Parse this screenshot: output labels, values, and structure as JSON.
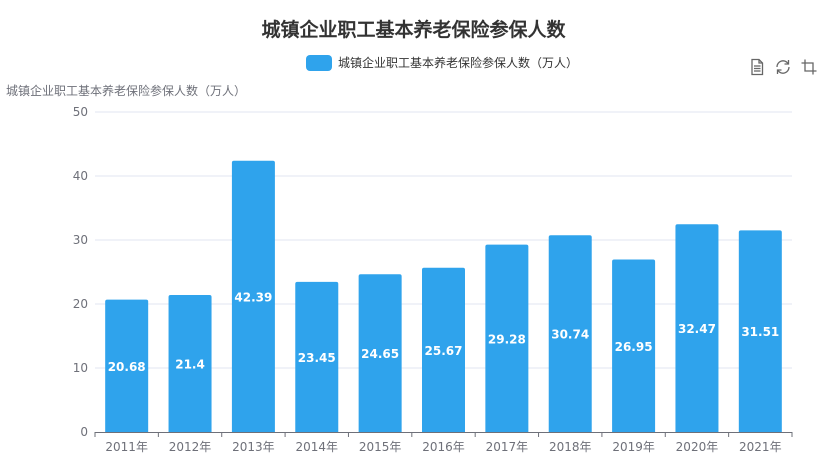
{
  "chart_data": {
    "type": "bar",
    "title": "城镇企业职工基本养老保险参保人数",
    "xlabel": "",
    "ylabel": "城镇企业职工基本养老保险参保人数（万人）",
    "categories": [
      "2011年",
      "2012年",
      "2013年",
      "2014年",
      "2015年",
      "2016年",
      "2017年",
      "2018年",
      "2019年",
      "2020年",
      "2021年"
    ],
    "series": [
      {
        "name": "城镇企业职工基本养老保险参保人数（万人）",
        "values": [
          20.68,
          21.4,
          42.39,
          23.45,
          24.65,
          25.67,
          29.28,
          30.74,
          26.95,
          32.47,
          31.51
        ],
        "data_labels": [
          "20.68",
          "21.4",
          "42.39",
          "23.45",
          "24.65",
          "25.67",
          "29.28",
          "30.74",
          "26.95",
          "32.47",
          "31.51"
        ],
        "color": "#2fa3ec"
      }
    ],
    "ylim": [
      0,
      50
    ],
    "yticks": [
      0,
      10,
      20,
      30,
      40,
      50
    ],
    "grid": true,
    "legend_position": "top-center"
  },
  "toolbox": {
    "icons": [
      "data-view-icon",
      "restore-icon",
      "crop-icon"
    ]
  },
  "colors": {
    "bar": "#2fa3ec",
    "grid": "#e0e6f1",
    "axis": "#6e7079",
    "text": "#333333",
    "label": "#ffffff"
  }
}
